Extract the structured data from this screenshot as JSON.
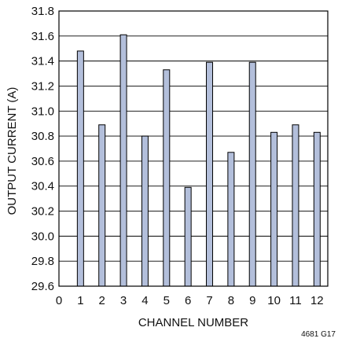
{
  "chart_data": {
    "type": "bar",
    "title": "",
    "xlabel": "CHANNEL NUMBER",
    "ylabel": "OUTPUT CURRENT (A)",
    "x_ticks": [
      "0",
      "1",
      "2",
      "3",
      "4",
      "5",
      "6",
      "7",
      "8",
      "9",
      "10",
      "11",
      "12"
    ],
    "xlim": [
      0,
      12.5
    ],
    "ylim": [
      29.6,
      31.8
    ],
    "y_ticks": [
      "29.6",
      "29.8",
      "30.0",
      "30.2",
      "30.4",
      "30.6",
      "30.8",
      "31.0",
      "31.2",
      "31.4",
      "31.6",
      "31.8"
    ],
    "categories": [
      1,
      2,
      3,
      4,
      5,
      6,
      7,
      8,
      9,
      10,
      11,
      12
    ],
    "values": [
      31.48,
      30.89,
      31.61,
      30.8,
      31.33,
      30.39,
      31.39,
      30.67,
      31.39,
      30.83,
      30.89,
      30.83
    ],
    "grid": "horizontal",
    "bar_color": "#b3bfdb",
    "bar_edge_color": "#000000",
    "figure_id": "4681 G17"
  }
}
